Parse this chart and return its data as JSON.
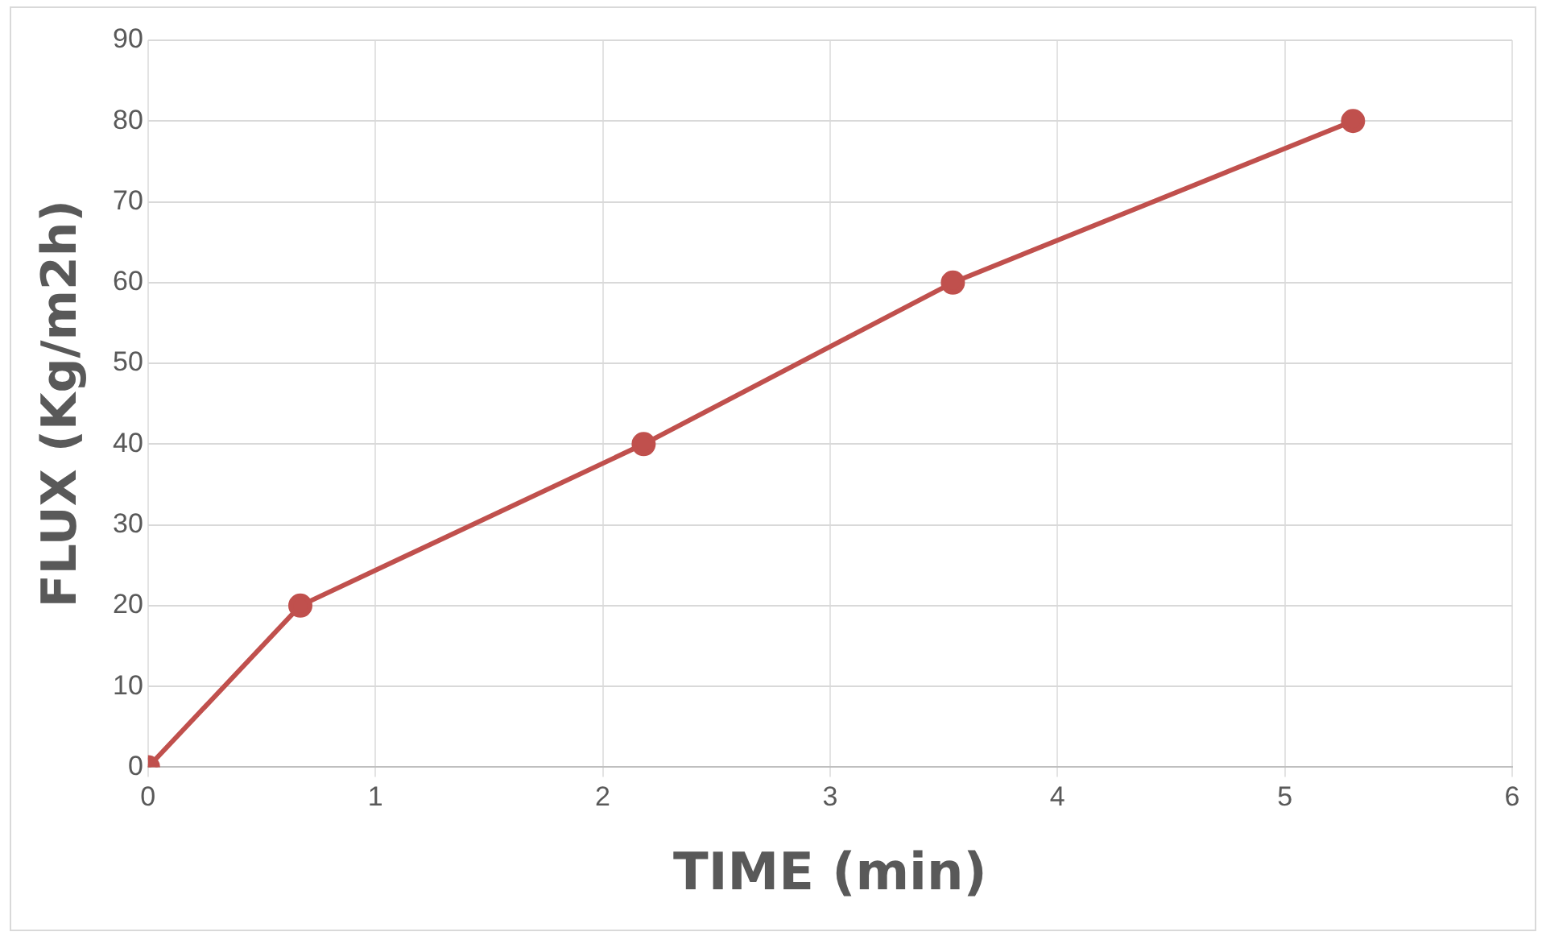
{
  "chart_data": {
    "type": "line",
    "xlabel": "TIME (min)",
    "ylabel": "FLUX (Kg/m2h)",
    "x": [
      0,
      0.67,
      2.18,
      3.54,
      5.3
    ],
    "series": [
      {
        "color": "#c0504d",
        "values": [
          0,
          20,
          40,
          60,
          80
        ]
      }
    ],
    "xlim": [
      0,
      6
    ],
    "xticks": [
      0,
      1,
      2,
      3,
      4,
      5,
      6
    ],
    "ylim": [
      0,
      90
    ],
    "yticks": [
      0,
      10,
      20,
      30,
      40,
      50,
      60,
      70,
      80,
      90
    ],
    "grid": true,
    "marker": "circle",
    "line_style": "solid",
    "legend": false
  }
}
